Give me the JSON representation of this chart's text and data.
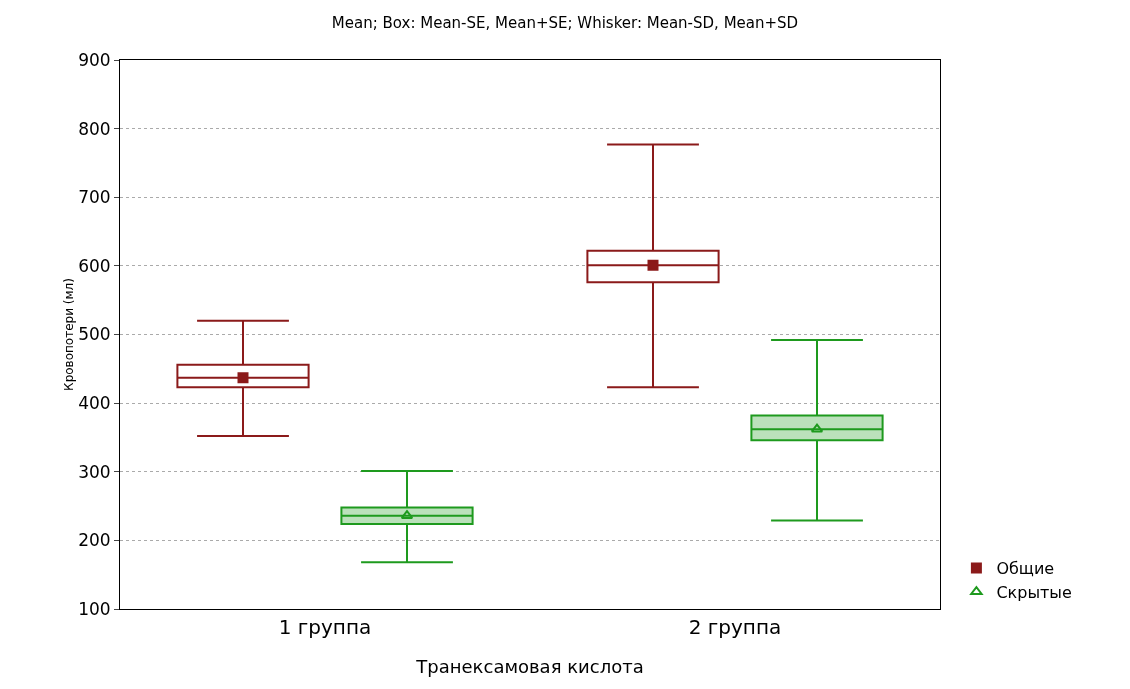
{
  "chart_data": {
    "type": "box",
    "title": "Mean; Box: Mean-SE, Mean+SE; Whisker: Mean-SD, Mean+SD",
    "xlabel": "Транексамовая кислота",
    "ylabel": "Кровопотери (мл)",
    "categories": [
      "1 группа",
      "2 группа"
    ],
    "ylim": [
      100,
      900
    ],
    "yticks": [
      100,
      200,
      300,
      400,
      500,
      600,
      700,
      800,
      900
    ],
    "grid": "y",
    "legend": "bottom right",
    "series": [
      {
        "name": "Общие",
        "color": "#8b1a1a",
        "marker": "square",
        "boxes": [
          {
            "low": 352,
            "q1": 423,
            "median": 437,
            "q3": 456,
            "high": 520,
            "mean": 437
          },
          {
            "low": 423,
            "q1": 576,
            "median": 601,
            "q3": 622,
            "high": 777,
            "mean": 601
          }
        ]
      },
      {
        "name": "Скрытые",
        "color": "#1e9a1e",
        "marker": "triangle",
        "boxes": [
          {
            "low": 168,
            "q1": 224,
            "median": 236,
            "q3": 248,
            "high": 301,
            "mean": 236
          },
          {
            "low": 229,
            "q1": 346,
            "median": 362,
            "q3": 382,
            "high": 492,
            "mean": 362
          }
        ]
      }
    ]
  }
}
